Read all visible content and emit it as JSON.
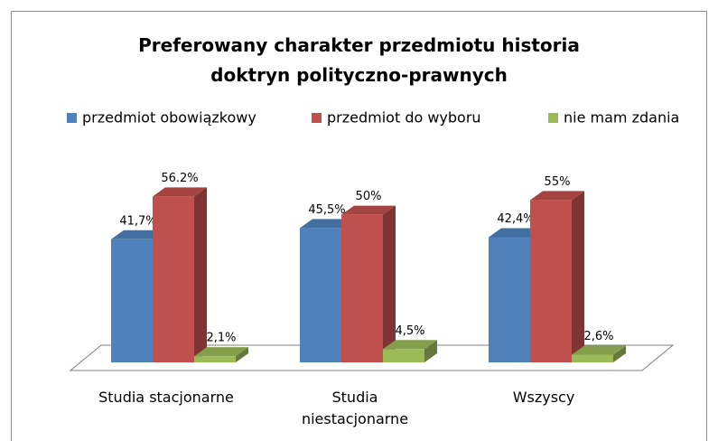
{
  "chart_data": {
    "type": "bar3d",
    "title": "Preferowany charakter przedmiotu historia doktryn polityczno-prawnych",
    "categories": [
      "Studia stacjonarne",
      "Studia niestacjonarne",
      "Wszyscy"
    ],
    "ylim": [
      0,
      60
    ],
    "legend": "top",
    "series": [
      {
        "name": "przedmiot obowiązkowy",
        "color": "#4f81bd",
        "values": [
          41.7,
          45.5,
          42.4
        ],
        "value_labels": [
          "41,7%",
          "45,5%",
          "42,4%"
        ]
      },
      {
        "name": "przedmiot do wyboru",
        "color": "#c0504d",
        "values": [
          56.2,
          50,
          55
        ],
        "value_labels": [
          "56.2%",
          "50%",
          "55%"
        ]
      },
      {
        "name": "nie mam zdania",
        "color": "#9bbb59",
        "values": [
          2.1,
          4.5,
          2.6
        ],
        "value_labels": [
          "2,1%",
          "4,5%",
          "2,6%"
        ]
      }
    ]
  }
}
